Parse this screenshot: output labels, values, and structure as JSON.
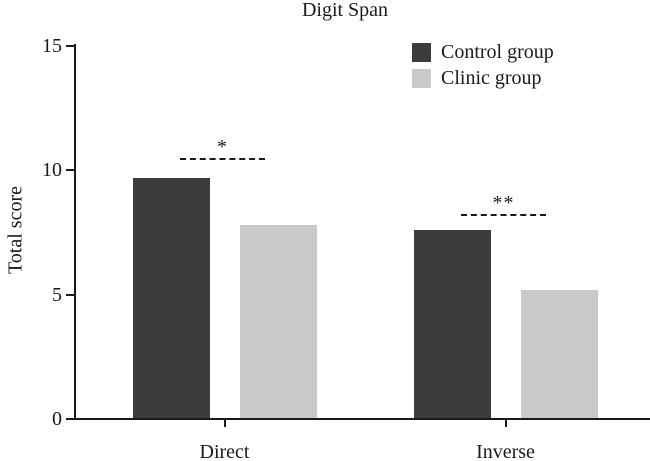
{
  "title": "Digit Span",
  "chart_data": {
    "type": "bar",
    "title": "Digit Span",
    "categories": [
      "Direct",
      "Inverse"
    ],
    "series": [
      {
        "name": "Control group",
        "values": [
          9.7,
          7.6
        ],
        "color": "#3b3b3b"
      },
      {
        "name": "Clinic group",
        "values": [
          7.8,
          5.2
        ],
        "color": "#c9c9c9"
      }
    ],
    "xlabel": "",
    "ylabel": "Total score",
    "ylim": [
      0,
      15
    ],
    "yticks": [
      0,
      5,
      10,
      15
    ],
    "grid": false,
    "legend_position": "upper right",
    "annotations": [
      {
        "text": "*",
        "category": "Direct",
        "type": "significance-marker"
      },
      {
        "text": "**",
        "category": "Inverse",
        "type": "significance-marker"
      }
    ]
  },
  "colors": {
    "axis": "#1a1a1a",
    "background": "#ffffff",
    "control_bar": "#3b3b3b",
    "clinic_bar": "#c9c9c9"
  }
}
